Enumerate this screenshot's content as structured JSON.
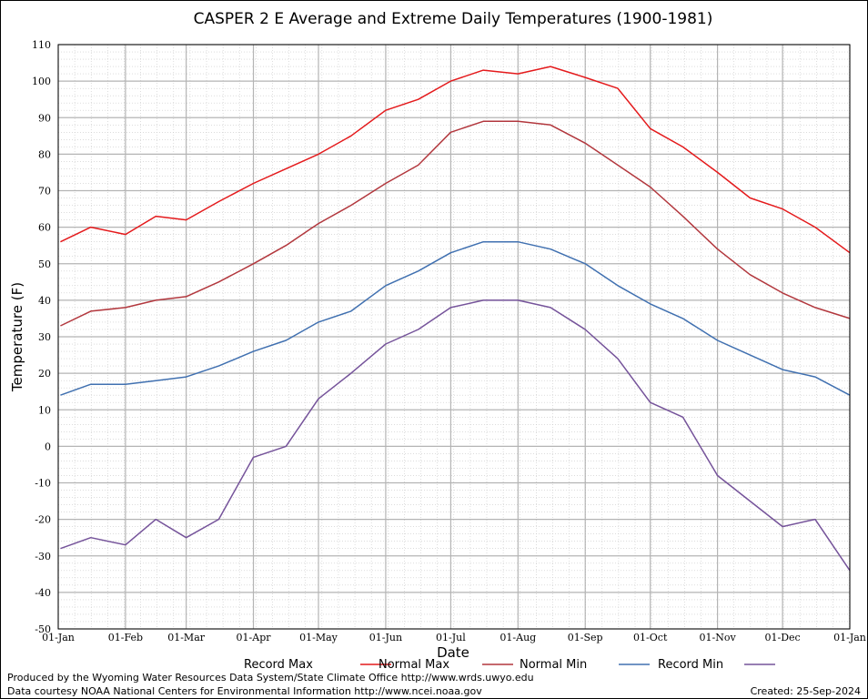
{
  "chart_data": {
    "type": "line",
    "title": "CASPER 2 E Average and Extreme Daily Temperatures (1900-1981)",
    "xlabel": "Date",
    "ylabel": "Temperature (F)",
    "ylim": [
      -50,
      110
    ],
    "y_ticks": [
      -50,
      -40,
      -30,
      -20,
      -10,
      0,
      10,
      20,
      30,
      40,
      50,
      60,
      70,
      80,
      90,
      100,
      110
    ],
    "x_tick_labels": [
      "01-Jan",
      "01-Feb",
      "01-Mar",
      "01-Apr",
      "01-May",
      "01-Jun",
      "01-Jul",
      "01-Aug",
      "01-Sep",
      "01-Oct",
      "01-Nov",
      "01-Dec",
      "01-Jan"
    ],
    "x_tick_days": [
      0,
      31,
      59,
      90,
      120,
      151,
      181,
      212,
      243,
      273,
      304,
      334,
      365
    ],
    "grid": true,
    "legend_position": "bottom",
    "x": [
      1,
      15,
      31,
      45,
      59,
      74,
      90,
      105,
      120,
      135,
      151,
      166,
      181,
      196,
      212,
      227,
      243,
      258,
      273,
      288,
      304,
      319,
      334,
      349,
      365
    ],
    "series": [
      {
        "name": "Record Max",
        "color": "#e41a1c",
        "values": [
          56,
          60,
          58,
          63,
          62,
          67,
          72,
          76,
          80,
          85,
          92,
          95,
          100,
          103,
          102,
          104,
          101,
          98,
          87,
          82,
          75,
          68,
          65,
          60,
          53
        ]
      },
      {
        "name": "Normal Max",
        "color": "#b2373d",
        "values": [
          33,
          37,
          38,
          40,
          41,
          45,
          50,
          55,
          61,
          66,
          72,
          77,
          86,
          89,
          89,
          88,
          83,
          77,
          71,
          63,
          54,
          47,
          42,
          38,
          35
        ]
      },
      {
        "name": "Normal Min",
        "color": "#4070b0",
        "values": [
          14,
          17,
          17,
          18,
          19,
          22,
          26,
          29,
          34,
          37,
          44,
          48,
          53,
          56,
          56,
          54,
          50,
          44,
          39,
          35,
          29,
          25,
          21,
          19,
          14
        ]
      },
      {
        "name": "Record Min",
        "color": "#75539a",
        "values": [
          -28,
          -25,
          -27,
          -20,
          -25,
          -20,
          -3,
          0,
          13,
          20,
          28,
          32,
          38,
          40,
          40,
          38,
          32,
          24,
          12,
          8,
          -8,
          -15,
          -22,
          -20,
          -34
        ]
      }
    ]
  },
  "footer": {
    "produced_by": "Produced by the Wyoming Water Resources Data System/State Climate Office http://www.wrds.uwyo.edu",
    "data_courtesy": "Data courtesy NOAA National Centers for Environmental Information http://www.ncei.noaa.gov",
    "created": "Created: 25-Sep-2024"
  }
}
